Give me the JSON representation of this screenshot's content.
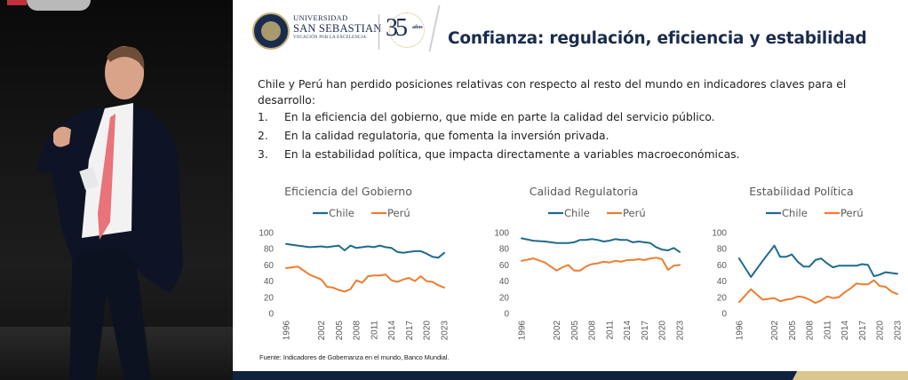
{
  "slide": {
    "logo": {
      "line1": "UNIVERSIDAD",
      "line2": "SAN SEBASTIAN",
      "line3": "VOCACIÓN POR LA EXCELENCIA",
      "anniversary_number": "35",
      "anniversary_word": "años"
    },
    "title": "Confianza: regulación, eficiencia y estabilidad",
    "intro": "Chile y Perú han perdido posiciones relativas con respecto al resto del mundo en indicadores claves para el desarrollo:",
    "points": [
      {
        "num": "1.",
        "text": "En la eficiencia del gobierno, que mide en parte la calidad del servicio público."
      },
      {
        "num": "2.",
        "text": "En la calidad regulatoria, que fomenta la inversión privada."
      },
      {
        "num": "3.",
        "text": "En la estabilidad política, que impacta directamente a variables macroeconómicas."
      }
    ],
    "source": "Fuente: Indicadores de Gobernanza en el mundo, Banco Mundial."
  },
  "colors": {
    "chile": "#1f6b8c",
    "peru": "#ed7d31",
    "navy": "#1a2c4e",
    "gold": "#dbc690"
  },
  "chart_data": [
    {
      "type": "line",
      "title": "Eficiencia del Gobierno",
      "xlabel": "",
      "ylabel": "",
      "ylim": [
        0,
        100
      ],
      "yticks": [
        0,
        20,
        40,
        60,
        80,
        100
      ],
      "xtick_labels": [
        "1996",
        "2002",
        "2005",
        "2008",
        "2011",
        "2014",
        "2017",
        "2020",
        "2023"
      ],
      "legend_position": "top",
      "grid": false,
      "x": [
        1996,
        1998,
        2000,
        2002,
        2003,
        2004,
        2005,
        2006,
        2007,
        2008,
        2009,
        2010,
        2011,
        2012,
        2013,
        2014,
        2015,
        2016,
        2017,
        2018,
        2019,
        2020,
        2021,
        2022,
        2023
      ],
      "series": [
        {
          "name": "Chile",
          "values": [
            86,
            84,
            82,
            83,
            82,
            83,
            84,
            78,
            84,
            81,
            82,
            83,
            82,
            84,
            82,
            81,
            76,
            75,
            76,
            77,
            77,
            74,
            70,
            69,
            75
          ]
        },
        {
          "name": "Perú",
          "values": [
            56,
            58,
            48,
            42,
            33,
            32,
            29,
            27,
            30,
            41,
            38,
            46,
            47,
            47,
            48,
            41,
            39,
            42,
            44,
            40,
            46,
            40,
            39,
            35,
            32
          ]
        }
      ]
    },
    {
      "type": "line",
      "title": "Calidad Regulatoria",
      "xlabel": "",
      "ylabel": "",
      "ylim": [
        0,
        100
      ],
      "yticks": [
        0,
        20,
        40,
        60,
        80,
        100
      ],
      "xtick_labels": [
        "1996",
        "2002",
        "2005",
        "2008",
        "2011",
        "2014",
        "2017",
        "2020",
        "2023"
      ],
      "legend_position": "top",
      "grid": false,
      "x": [
        1996,
        1998,
        2000,
        2002,
        2003,
        2004,
        2005,
        2006,
        2007,
        2008,
        2009,
        2010,
        2011,
        2012,
        2013,
        2014,
        2015,
        2016,
        2017,
        2018,
        2019,
        2020,
        2021,
        2022,
        2023
      ],
      "series": [
        {
          "name": "Chile",
          "values": [
            93,
            90,
            89,
            87,
            87,
            87,
            88,
            91,
            91,
            92,
            91,
            89,
            90,
            92,
            91,
            91,
            88,
            89,
            88,
            87,
            82,
            79,
            78,
            81,
            76
          ]
        },
        {
          "name": "Perú",
          "values": [
            65,
            68,
            63,
            53,
            57,
            60,
            53,
            53,
            58,
            61,
            62,
            64,
            63,
            65,
            64,
            66,
            66,
            67,
            66,
            68,
            69,
            67,
            54,
            59,
            60
          ]
        }
      ]
    },
    {
      "type": "line",
      "title": "Estabilidad Política",
      "xlabel": "",
      "ylabel": "",
      "ylim": [
        0,
        100
      ],
      "yticks": [
        0,
        20,
        40,
        60,
        80,
        100
      ],
      "xtick_labels": [
        "1996",
        "2002",
        "2005",
        "2008",
        "2011",
        "2014",
        "2017",
        "2020",
        "2023"
      ],
      "legend_position": "top",
      "grid": false,
      "x": [
        1996,
        1998,
        2000,
        2002,
        2003,
        2004,
        2005,
        2006,
        2007,
        2008,
        2009,
        2010,
        2011,
        2012,
        2013,
        2014,
        2015,
        2016,
        2017,
        2018,
        2019,
        2020,
        2021,
        2022,
        2023
      ],
      "series": [
        {
          "name": "Chile",
          "values": [
            68,
            45,
            65,
            84,
            70,
            70,
            73,
            64,
            58,
            58,
            66,
            68,
            62,
            57,
            59,
            59,
            59,
            59,
            61,
            60,
            46,
            48,
            51,
            50,
            49
          ]
        },
        {
          "name": "Perú",
          "values": [
            14,
            30,
            17,
            19,
            15,
            17,
            18,
            21,
            20,
            17,
            13,
            16,
            21,
            19,
            20,
            26,
            31,
            37,
            36,
            36,
            41,
            34,
            33,
            27,
            24
          ]
        }
      ]
    }
  ]
}
